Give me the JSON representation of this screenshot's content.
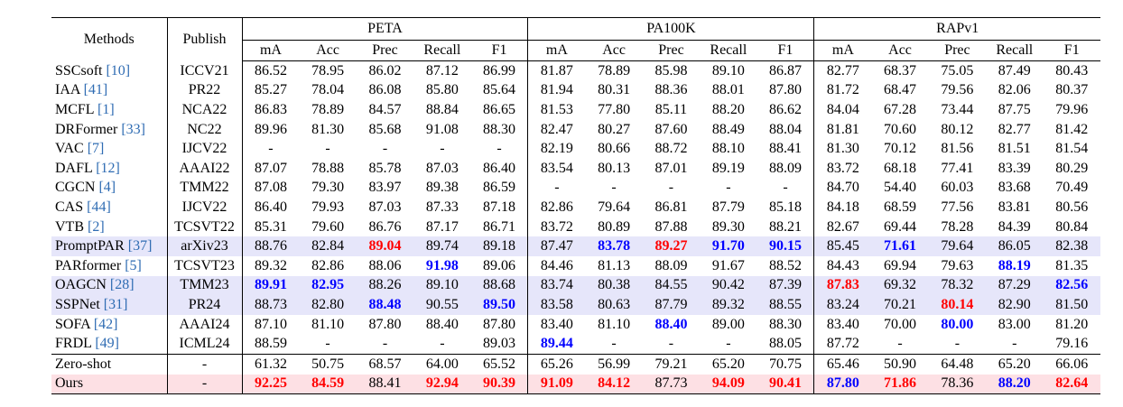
{
  "table": {
    "header": {
      "methods": "Methods",
      "publish": "Publish",
      "groups": [
        "PETA",
        "PA100K",
        "RAPv1"
      ],
      "metrics": [
        "mA",
        "Acc",
        "Prec",
        "Recall",
        "F1"
      ]
    },
    "rows": [
      {
        "method": "SSCsoft",
        "ref": "[10]",
        "publish": "ICCV21",
        "values": [
          "86.52",
          "78.95",
          "86.02",
          "87.12",
          "86.99",
          "81.87",
          "78.89",
          "85.98",
          "89.10",
          "86.87",
          "82.77",
          "68.37",
          "75.05",
          "87.49",
          "80.43"
        ]
      },
      {
        "method": "IAA",
        "ref": "[41]",
        "publish": "PR22",
        "values": [
          "85.27",
          "78.04",
          "86.08",
          "85.80",
          "85.64",
          "81.94",
          "80.31",
          "88.36",
          "88.01",
          "87.80",
          "81.72",
          "68.47",
          "79.56",
          "82.06",
          "80.37"
        ]
      },
      {
        "method": "MCFL",
        "ref": "[1]",
        "publish": "NCA22",
        "values": [
          "86.83",
          "78.89",
          "84.57",
          "88.84",
          "86.65",
          "81.53",
          "77.80",
          "85.11",
          "88.20",
          "86.62",
          "84.04",
          "67.28",
          "73.44",
          "87.75",
          "79.96"
        ]
      },
      {
        "method": "DRFormer",
        "ref": "[33]",
        "publish": "NC22",
        "values": [
          "89.96",
          "81.30",
          "85.68",
          "91.08",
          "88.30",
          "82.47",
          "80.27",
          "87.60",
          "88.49",
          "88.04",
          "81.81",
          "70.60",
          "80.12",
          "82.77",
          "81.42"
        ]
      },
      {
        "method": "VAC",
        "ref": "[7]",
        "publish": "IJCV22",
        "values": [
          "-",
          "-",
          "-",
          "-",
          "-",
          "82.19",
          "80.66",
          "88.72",
          "88.10",
          "88.41",
          "81.30",
          "70.12",
          "81.56",
          "81.51",
          "81.54"
        ]
      },
      {
        "method": "DAFL",
        "ref": "[12]",
        "publish": "AAAI22",
        "values": [
          "87.07",
          "78.88",
          "85.78",
          "87.03",
          "86.40",
          "83.54",
          "80.13",
          "87.01",
          "89.19",
          "88.09",
          "83.72",
          "68.18",
          "77.41",
          "83.39",
          "80.29"
        ]
      },
      {
        "method": "CGCN",
        "ref": "[4]",
        "publish": "TMM22",
        "values": [
          "87.08",
          "79.30",
          "83.97",
          "89.38",
          "86.59",
          "-",
          "-",
          "-",
          "-",
          "-",
          "84.70",
          "54.40",
          "60.03",
          "83.68",
          "70.49"
        ]
      },
      {
        "method": "CAS",
        "ref": "[44]",
        "publish": "IJCV22",
        "values": [
          "86.40",
          "79.93",
          "87.03",
          "87.33",
          "87.18",
          "82.86",
          "79.64",
          "86.81",
          "87.79",
          "85.18",
          "84.18",
          "68.59",
          "77.56",
          "83.81",
          "80.56"
        ]
      },
      {
        "method": "VTB",
        "ref": "[2]",
        "publish": "TCSVT22",
        "values": [
          "85.31",
          "79.60",
          "86.76",
          "87.17",
          "86.71",
          "83.72",
          "80.89",
          "87.88",
          "89.30",
          "88.21",
          "82.67",
          "69.44",
          "78.28",
          "84.39",
          "80.84"
        ]
      },
      {
        "method": "PromptPAR",
        "ref": "[37]",
        "publish": "arXiv23",
        "background": "#e6e6fa",
        "values": [
          "88.76",
          "82.84",
          {
            "text": "89.04",
            "color": "#ff0000"
          },
          "89.74",
          "89.18",
          "87.47",
          {
            "text": "83.78",
            "color": "#0000ff"
          },
          {
            "text": "89.27",
            "color": "#ff0000"
          },
          {
            "text": "91.70",
            "color": "#0000ff"
          },
          {
            "text": "90.15",
            "color": "#0000ff"
          },
          "85.45",
          {
            "text": "71.61",
            "color": "#0000ff"
          },
          "79.64",
          "86.05",
          "82.38"
        ]
      },
      {
        "method": "PARformer",
        "ref": "[5]",
        "publish": "TCSVT23",
        "values": [
          "89.32",
          "82.86",
          "88.06",
          {
            "text": "91.98",
            "color": "#0000ff"
          },
          "89.06",
          "84.46",
          "81.13",
          "88.09",
          "91.67",
          "88.52",
          "84.43",
          "69.94",
          "79.63",
          {
            "text": "88.19",
            "color": "#0000ff"
          },
          "81.35"
        ]
      },
      {
        "method": "OAGCN",
        "ref": "[28]",
        "publish": "TMM23",
        "background": "#e6e6fa",
        "values": [
          {
            "text": "89.91",
            "color": "#0000ff"
          },
          {
            "text": "82.95",
            "color": "#0000ff"
          },
          "88.26",
          "89.10",
          "88.68",
          "83.74",
          "80.38",
          "84.55",
          "90.42",
          "87.39",
          {
            "text": "87.83",
            "color": "#ff0000"
          },
          "69.32",
          "78.32",
          "87.29",
          {
            "text": "82.56",
            "color": "#0000ff"
          }
        ]
      },
      {
        "method": "SSPNet",
        "ref": "[31]",
        "publish": "PR24",
        "background": "#e6e6fa",
        "values": [
          "88.73",
          "82.80",
          {
            "text": "88.48",
            "color": "#0000ff"
          },
          "90.55",
          {
            "text": "89.50",
            "color": "#0000ff"
          },
          "83.58",
          "80.63",
          "87.79",
          "89.32",
          "88.55",
          "83.24",
          "70.21",
          {
            "text": "80.14",
            "color": "#ff0000"
          },
          "82.90",
          "81.50"
        ]
      },
      {
        "method": "SOFA",
        "ref": "[42]",
        "publish": "AAAI24",
        "values": [
          "87.10",
          "81.10",
          "87.80",
          "88.40",
          "87.80",
          "83.40",
          "81.10",
          {
            "text": "88.40",
            "color": "#0000ff"
          },
          "89.00",
          "88.30",
          "83.40",
          "70.00",
          {
            "text": "80.00",
            "color": "#0000ff"
          },
          "83.00",
          "81.20"
        ]
      },
      {
        "method": "FRDL",
        "ref": "[49]",
        "publish": "ICML24",
        "values": [
          "88.59",
          "-",
          "-",
          "-",
          "89.03",
          {
            "text": "89.44",
            "color": "#0000ff"
          },
          "-",
          "-",
          "-",
          "88.05",
          "87.72",
          "-",
          "-",
          "-",
          "79.16"
        ]
      },
      {
        "method": "Zero-shot",
        "publish": "-",
        "section_start": true,
        "values": [
          "61.32",
          "50.75",
          "68.57",
          "64.00",
          "65.52",
          "65.26",
          "56.99",
          "79.21",
          "65.20",
          "70.75",
          "65.46",
          "50.90",
          "64.48",
          "65.20",
          "66.06"
        ]
      },
      {
        "method": "Ours",
        "publish": "-",
        "background": "#fde0e4",
        "values": [
          {
            "text": "92.25",
            "color": "#ff0000"
          },
          {
            "text": "84.59",
            "color": "#ff0000"
          },
          "88.41",
          {
            "text": "92.94",
            "color": "#ff0000"
          },
          {
            "text": "90.39",
            "color": "#ff0000"
          },
          {
            "text": "91.09",
            "color": "#ff0000"
          },
          {
            "text": "84.12",
            "color": "#ff0000"
          },
          "87.73",
          {
            "text": "94.09",
            "color": "#ff0000"
          },
          {
            "text": "90.41",
            "color": "#ff0000"
          },
          {
            "text": "87.80",
            "color": "#0000ff"
          },
          {
            "text": "71.86",
            "color": "#ff0000"
          },
          "78.36",
          {
            "text": "88.20",
            "color": "#0000ff"
          },
          {
            "text": "82.64",
            "color": "#ff0000"
          }
        ]
      }
    ]
  }
}
